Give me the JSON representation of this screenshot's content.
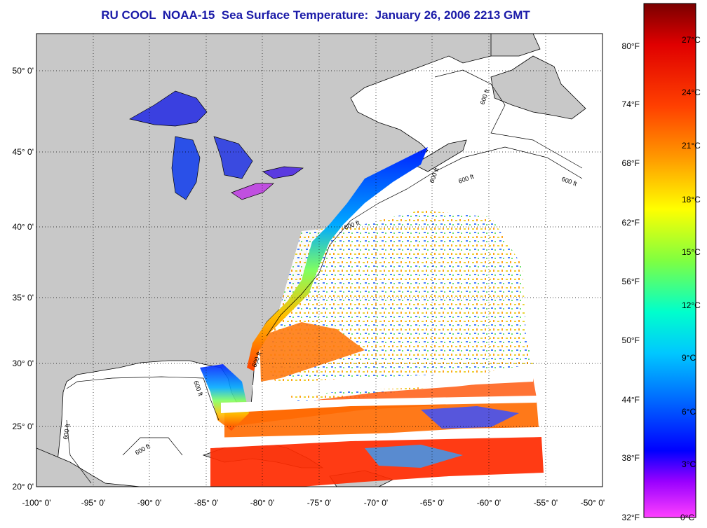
{
  "title": "RU COOL  NOAA-15  Sea Surface Temperature:  January 26, 2006 2213 GMT",
  "map": {
    "lon_range": [
      -100,
      -50
    ],
    "lat_range": [
      20,
      52.5
    ],
    "lon_labels": [
      "-100° 0'",
      "-95° 0'",
      "-90° 0'",
      "-85° 0'",
      "-80° 0'",
      "-75° 0'",
      "-70° 0'",
      "-65° 0'",
      "-60° 0'",
      "-55° 0'",
      "-50° 0'"
    ],
    "lat_labels": [
      "20° 0'",
      "25° 0'",
      "30° 0'",
      "35° 0'",
      "40° 0'",
      "45° 0'",
      "50° 0'"
    ],
    "isobath_labels": [
      "600 ft",
      "600 ft",
      "600 ft",
      "600 ft",
      "600 ft",
      "600 ft",
      "600 ft",
      "600 ft",
      "600 ft"
    ],
    "land_color": "#c8c8c8",
    "water_nodata_color": "#ffffff",
    "grid": "dotted"
  },
  "colorbar": {
    "fahrenheit_labels": [
      "80°F",
      "74°F",
      "68°F",
      "62°F",
      "56°F",
      "50°F",
      "44°F",
      "38°F",
      "32°F"
    ],
    "celsius_labels": [
      "27°C",
      "24°C",
      "21°C",
      "18°C",
      "15°C",
      "12°C",
      "9°C",
      "6°C",
      "3°C",
      "0°C"
    ],
    "colors_top_to_bottom": [
      "#8b0000",
      "#ff0000",
      "#ff8000",
      "#ffff00",
      "#80ff40",
      "#00ffff",
      "#0080ff",
      "#0000ff",
      "#8000ff",
      "#ff40ff"
    ]
  }
}
